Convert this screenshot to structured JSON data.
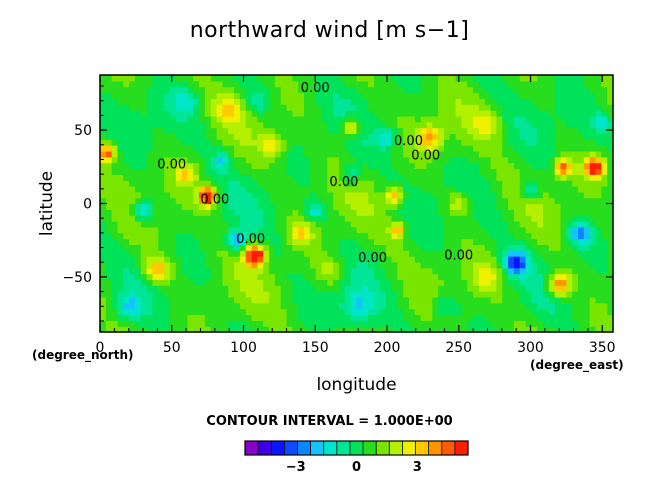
{
  "chart_data": {
    "type": "heatmap",
    "title": "northward wind [m s−1]",
    "xlabel": "longitude",
    "ylabel": "latitude",
    "x_unit": "(degree_east)",
    "y_unit": "(degree_north)",
    "xlim": [
      0,
      357.5
    ],
    "ylim": [
      -87.5,
      87.5
    ],
    "xticks": [
      0,
      50,
      100,
      150,
      200,
      250,
      300,
      350
    ],
    "yticks": [
      -50,
      0,
      50
    ],
    "contour_interval_text": "CONTOUR INTERVAL = 1.000E+00",
    "contour_labels": [
      "0.00",
      "0.00",
      "0.00",
      "0.00",
      "0.00",
      "0.00",
      "0.00",
      "0.00",
      "0.00"
    ],
    "colorbar": {
      "range": [
        -5.5,
        5.5
      ],
      "ticks": [
        -3,
        0,
        3
      ],
      "colors": [
        "#8b00c8",
        "#3c00e6",
        "#0a14ff",
        "#0a4bff",
        "#0a87ff",
        "#14c3ff",
        "#00e6c8",
        "#00e696",
        "#00e25a",
        "#28dc1e",
        "#7ae600",
        "#b4f000",
        "#f0f000",
        "#ffc800",
        "#ff9600",
        "#ff5a00",
        "#ff1e00"
      ]
    },
    "features": [
      {
        "lon": 75,
        "lat": 5,
        "amp": 6,
        "r": 6
      },
      {
        "lon": 108,
        "lat": -35,
        "amp": 6,
        "r": 7
      },
      {
        "lon": 345,
        "lat": 25,
        "amp": 5,
        "r": 7
      },
      {
        "lon": 320,
        "lat": -55,
        "amp": 4,
        "r": 8
      },
      {
        "lon": 323,
        "lat": 25,
        "amp": 4,
        "r": 6
      },
      {
        "lon": 5,
        "lat": 35,
        "amp": 4,
        "r": 6
      },
      {
        "lon": 40,
        "lat": -45,
        "amp": 3,
        "r": 9
      },
      {
        "lon": 175,
        "lat": 52,
        "amp": 3,
        "r": 7
      },
      {
        "lon": 230,
        "lat": 45,
        "amp": 3,
        "r": 8
      },
      {
        "lon": 205,
        "lat": 5,
        "amp": 3,
        "r": 6
      },
      {
        "lon": 207,
        "lat": -18,
        "amp": 3,
        "r": 5
      },
      {
        "lon": 140,
        "lat": -20,
        "amp": 2,
        "r": 8
      },
      {
        "lon": 120,
        "lat": 40,
        "amp": 2,
        "r": 8
      },
      {
        "lon": 60,
        "lat": 20,
        "amp": 2,
        "r": 7
      },
      {
        "lon": 250,
        "lat": 0,
        "amp": 2,
        "r": 8
      },
      {
        "lon": 160,
        "lat": -45,
        "amp": 1.5,
        "r": 9
      },
      {
        "lon": 270,
        "lat": -50,
        "amp": 1.5,
        "r": 9
      },
      {
        "lon": 90,
        "lat": 65,
        "amp": 1.5,
        "r": 10
      },
      {
        "lon": 270,
        "lat": 55,
        "amp": 1.5,
        "r": 10
      },
      {
        "lon": 150,
        "lat": -5,
        "amp": -2,
        "r": 7
      },
      {
        "lon": 30,
        "lat": -5,
        "amp": -3,
        "r": 7
      },
      {
        "lon": 85,
        "lat": 30,
        "amp": -2,
        "r": 6
      },
      {
        "lon": 95,
        "lat": -25,
        "amp": -3,
        "r": 7
      },
      {
        "lon": 175,
        "lat": 20,
        "amp": -2,
        "r": 7
      },
      {
        "lon": 200,
        "lat": 45,
        "amp": -2,
        "r": 7
      },
      {
        "lon": 290,
        "lat": -40,
        "amp": -4,
        "r": 8
      },
      {
        "lon": 335,
        "lat": -20,
        "amp": -3,
        "r": 8
      },
      {
        "lon": 300,
        "lat": 10,
        "amp": -2,
        "r": 7
      },
      {
        "lon": 20,
        "lat": -70,
        "amp": -2,
        "r": 8
      },
      {
        "lon": 180,
        "lat": -70,
        "amp": -2,
        "r": 12
      },
      {
        "lon": 60,
        "lat": 70,
        "amp": -1.5,
        "r": 9
      },
      {
        "lon": 110,
        "lat": 70,
        "amp": -1.5,
        "r": 9
      },
      {
        "lon": 240,
        "lat": -70,
        "amp": -1.5,
        "r": 10
      },
      {
        "lon": 350,
        "lat": 55,
        "amp": -2,
        "r": 7
      }
    ]
  }
}
